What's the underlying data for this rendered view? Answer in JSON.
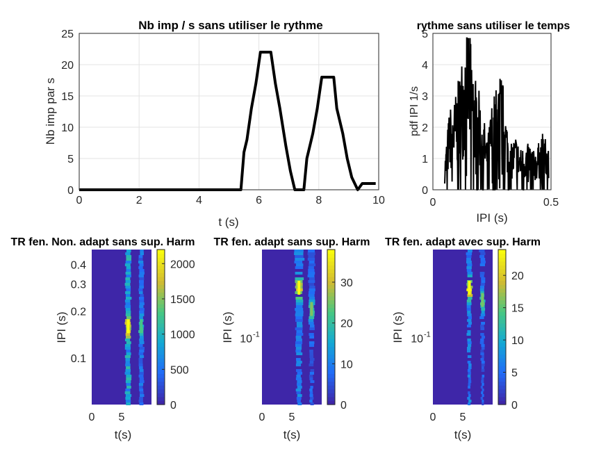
{
  "chart_data": [
    {
      "type": "line",
      "title": "Nb imp / s sans utiliser le rythme",
      "xlabel": "t (s)",
      "ylabel": "Nb imp par s",
      "xlim": [
        0,
        10
      ],
      "ylim": [
        0,
        25
      ],
      "xticks": [
        "0",
        "2",
        "4",
        "6",
        "8",
        "10"
      ],
      "yticks": [
        "0",
        "5",
        "10",
        "15",
        "20",
        "25"
      ],
      "grid": true,
      "series": [
        {
          "color": "#000000",
          "x": [
            0,
            5.4,
            5.5,
            5.6,
            5.75,
            5.9,
            6.05,
            6.2,
            6.4,
            6.55,
            6.7,
            6.9,
            7.05,
            7.2,
            7.3,
            7.5,
            7.6,
            7.8,
            7.95,
            8.1,
            8.3,
            8.5,
            8.6,
            8.8,
            8.95,
            9.1,
            9.3,
            9.45,
            9.9
          ],
          "y": [
            0,
            0,
            6,
            8,
            13,
            17,
            22,
            22,
            22,
            17,
            13,
            7,
            3,
            0,
            0,
            0,
            5,
            9,
            13,
            18,
            18,
            18,
            13,
            9,
            5,
            2,
            0,
            1,
            1
          ]
        }
      ]
    },
    {
      "type": "line",
      "title": "rythme sans utiliser le temps",
      "xlabel": "IPI (s)",
      "ylabel": "pdf IPI 1/s",
      "xlim": [
        0,
        0.5
      ],
      "ylim": [
        0,
        5
      ],
      "xticks": [
        "0",
        "0.5"
      ],
      "yticks": [
        "0",
        "1",
        "2",
        "3",
        "4",
        "5"
      ],
      "grid": true,
      "series": [
        {
          "color": "#000000",
          "x": [
            0.05,
            0.07,
            0.09,
            0.11,
            0.13,
            0.15,
            0.17,
            0.19,
            0.21,
            0.23,
            0.25,
            0.27,
            0.29,
            0.31,
            0.33,
            0.35,
            0.37,
            0.39,
            0.41,
            0.43,
            0.45,
            0.47,
            0.49
          ],
          "y": [
            0.8,
            2.2,
            2.4,
            3.0,
            4.0,
            4.8,
            3.5,
            2.8,
            2.2,
            1.3,
            2.4,
            2.8,
            3.3,
            2.0,
            1.2,
            1.5,
            1.1,
            1.2,
            1.3,
            1.0,
            1.3,
            1.6,
            1.0
          ]
        }
      ]
    },
    {
      "type": "heatmap",
      "title": "TR fen. Non. adapt sans sup. Harm",
      "xlabel": "t(s)",
      "ylabel": "IPI (s)",
      "xlim": [
        0,
        10
      ],
      "yscale": "log",
      "ylim": [
        0.05,
        0.5
      ],
      "xticks": [
        "0",
        "5"
      ],
      "yticks": [
        "0.1",
        "0.2",
        "0.3",
        "0.4"
      ],
      "colorbar": {
        "min": 0,
        "max": 2200,
        "ticks": [
          "0",
          "500",
          "1000",
          "1500",
          "2000"
        ]
      },
      "bands": [
        {
          "t": 6.1,
          "width": 0.9,
          "peak_ipi": 0.16,
          "peak_value": 2200
        },
        {
          "t": 8.3,
          "width": 0.8,
          "peak_ipi": 0.16,
          "peak_value": 1300
        }
      ]
    },
    {
      "type": "heatmap",
      "title": "TR fen. adapt sans sup. Harm",
      "xlabel": "t(s)",
      "ylabel": "IPI (s)",
      "xlim": [
        0,
        10
      ],
      "yscale": "log",
      "ylim": [
        0.03,
        0.5
      ],
      "xticks": [
        "0",
        "5"
      ],
      "ytick_main": "10",
      "ytick_exp": "-1",
      "colorbar": {
        "min": 0,
        "max": 38,
        "ticks": [
          "0",
          "10",
          "20",
          "30"
        ]
      },
      "bands": [
        {
          "t": 6.2,
          "width": 1.6,
          "peak_ipi": 0.25,
          "peak_value": 38
        },
        {
          "t": 8.3,
          "width": 1.2,
          "peak_ipi": 0.17,
          "peak_value": 26
        }
      ]
    },
    {
      "type": "heatmap",
      "title": "TR fen. adapt avec sup. Harm",
      "xlabel": "t(s)",
      "ylabel": "IPI (s)",
      "xlim": [
        0,
        10
      ],
      "yscale": "log",
      "ylim": [
        0.03,
        0.5
      ],
      "xticks": [
        "0",
        "5"
      ],
      "ytick_main": "10",
      "ytick_exp": "-1",
      "colorbar": {
        "min": 0,
        "max": 24,
        "ticks": [
          "0",
          "5",
          "10",
          "15",
          "20"
        ]
      },
      "bands": [
        {
          "t": 6.1,
          "width": 1.0,
          "peak_ipi": 0.25,
          "peak_value": 24
        },
        {
          "t": 8.3,
          "width": 0.9,
          "peak_ipi": 0.2,
          "peak_value": 16
        }
      ]
    }
  ]
}
